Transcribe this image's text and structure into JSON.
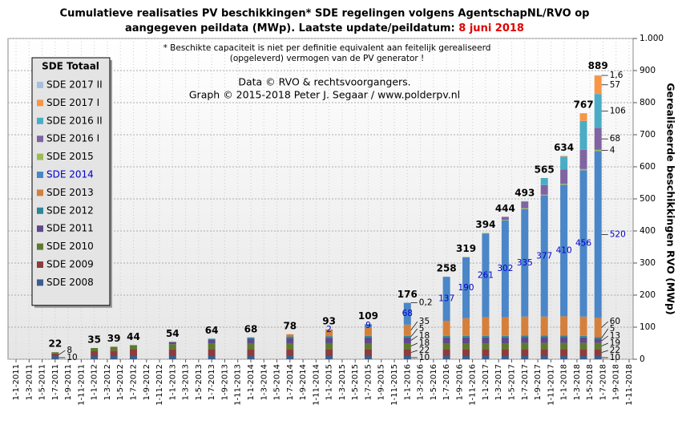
{
  "chart_data": {
    "type": "stacked_bar",
    "title_lines": [
      "Cumulatieve realisaties PV beschikkingen*  SDE regelingen volgens AgentschapNL/RVO  op",
      "aangegeven peildata (MWp). Laatste update/peildatum: "
    ],
    "title_date": "8 juni 2018",
    "notes": [
      "* Beschikte capaciteit is niet per definitie equivalent aan feitelijk gerealiseerd",
      "(opgeleverd) vermogen van de PV generator !"
    ],
    "credits": [
      "Data © RVO & rechtsvoorgangers.",
      "Graph  © 2015-2018  Peter J. Segaar / www.polderpv.nl"
    ],
    "y_label": "Gerealiseerde beschikkingen  RVO (MWp)",
    "legend_title": "SDE Totaal",
    "x": [
      "1-7-2011",
      "1-1-2012",
      "1-4-2012",
      "1-7-2012",
      "1-1-2013",
      "1-7-2013",
      "1-1-2014",
      "1-7-2014",
      "1-1-2015",
      "1-7-2015",
      "1-1-2016",
      "1-7-2016",
      "1-10-2016",
      "1-1-2017",
      "1-4-2017",
      "1-7-2017",
      "1-10-2017",
      "1-1-2018",
      "1-4-2018",
      "8-6-2018"
    ],
    "totals": [
      22,
      35,
      39,
      44,
      54,
      64,
      68,
      78,
      93,
      109,
      176,
      258,
      319,
      394,
      444,
      493,
      565,
      634,
      767,
      889
    ],
    "series": [
      {
        "name": "SDE 2008",
        "color": "#3b5e8c",
        "values": [
          10,
          10,
          10,
          10,
          10,
          10,
          10,
          10,
          10,
          10,
          10,
          10,
          10,
          10,
          10,
          10,
          10,
          10,
          10,
          10
        ],
        "value_labels": [
          "10",
          null,
          null,
          null,
          null,
          null,
          null,
          null,
          null,
          null,
          "10",
          null,
          null,
          null,
          null,
          null,
          null,
          null,
          null,
          "10"
        ]
      },
      {
        "name": "SDE 2009",
        "color": "#8e3b3b",
        "values": [
          8,
          15,
          17,
          20,
          21,
          22,
          22,
          22,
          22,
          22,
          22,
          22,
          22,
          22,
          22,
          22,
          22,
          22,
          22,
          22
        ],
        "value_labels": [
          "8",
          null,
          null,
          null,
          null,
          null,
          null,
          null,
          null,
          null,
          "22",
          null,
          null,
          null,
          null,
          null,
          null,
          null,
          null,
          "22"
        ]
      },
      {
        "name": "SDE 2010",
        "color": "#5d7a2f",
        "values": [
          4,
          10,
          12,
          14,
          16,
          17,
          17,
          18,
          18,
          18,
          18,
          18,
          18,
          18,
          18,
          19,
          19,
          19,
          19,
          19
        ],
        "value_labels": [
          null,
          null,
          null,
          null,
          null,
          null,
          null,
          null,
          null,
          null,
          "18",
          null,
          null,
          null,
          null,
          null,
          null,
          null,
          null,
          "19"
        ]
      },
      {
        "name": "SDE 2011",
        "color": "#5e4a8a",
        "values": [
          0,
          0,
          0,
          0,
          7,
          13,
          15,
          16,
          17,
          18,
          18,
          18,
          18,
          18,
          18,
          18,
          18,
          18,
          17,
          13
        ],
        "value_labels": [
          null,
          null,
          null,
          null,
          null,
          null,
          null,
          null,
          null,
          null,
          "18",
          null,
          null,
          null,
          null,
          null,
          null,
          null,
          null,
          "13"
        ]
      },
      {
        "name": "SDE 2012",
        "color": "#2e8697",
        "values": [
          0,
          0,
          0,
          0,
          0,
          2,
          4,
          5,
          5,
          5,
          5,
          5,
          5,
          5,
          5,
          5,
          5,
          5,
          5,
          5
        ],
        "value_labels": [
          null,
          null,
          null,
          null,
          null,
          null,
          null,
          null,
          null,
          null,
          "5",
          null,
          null,
          null,
          null,
          null,
          null,
          null,
          null,
          "5"
        ]
      },
      {
        "name": "SDE 2013",
        "color": "#d4803c",
        "values": [
          0,
          0,
          0,
          0,
          0,
          0,
          0,
          7,
          19,
          27,
          35,
          47,
          55,
          58,
          58,
          59,
          59,
          60,
          60,
          60
        ],
        "value_labels": [
          null,
          null,
          null,
          null,
          null,
          null,
          null,
          null,
          null,
          null,
          "35",
          null,
          null,
          null,
          null,
          null,
          null,
          null,
          null,
          "60"
        ]
      },
      {
        "name": "SDE 2014",
        "color": "#4a86c8",
        "values": [
          0,
          0,
          0,
          0,
          0,
          0,
          0,
          0,
          2,
          9,
          68,
          137,
          190,
          261,
          302,
          335,
          377,
          410,
          456,
          520
        ],
        "value_labels": [
          null,
          null,
          null,
          null,
          null,
          null,
          null,
          null,
          "2",
          "9",
          "68",
          "137",
          "190",
          "261",
          "302",
          "335",
          "377",
          "410",
          "456",
          "520"
        ]
      },
      {
        "name": "SDE 2015",
        "color": "#9bbb59",
        "values": [
          0,
          0,
          0,
          0,
          0,
          0,
          0,
          0,
          0,
          0,
          0.2,
          0.5,
          1,
          2,
          2,
          3,
          3,
          3,
          4,
          4
        ],
        "value_labels": [
          null,
          null,
          null,
          null,
          null,
          null,
          null,
          null,
          null,
          null,
          "0,2",
          null,
          null,
          null,
          null,
          null,
          null,
          null,
          null,
          "4"
        ]
      },
      {
        "name": "SDE 2016 I",
        "color": "#8064a2",
        "values": [
          0,
          0,
          0,
          0,
          0,
          0,
          0,
          0,
          0,
          0,
          0,
          0,
          0,
          0,
          9,
          20,
          30,
          45,
          60,
          68
        ],
        "value_labels": [
          null,
          null,
          null,
          null,
          null,
          null,
          null,
          null,
          null,
          null,
          null,
          null,
          null,
          null,
          null,
          null,
          null,
          null,
          null,
          "68"
        ]
      },
      {
        "name": "SDE 2016 II",
        "color": "#4bacc6",
        "values": [
          0,
          0,
          0,
          0,
          0,
          0,
          0,
          0,
          0,
          0,
          0,
          0,
          0,
          0,
          0,
          2,
          22,
          40,
          90,
          106
        ],
        "value_labels": [
          null,
          null,
          null,
          null,
          null,
          null,
          null,
          null,
          null,
          null,
          null,
          null,
          null,
          null,
          null,
          null,
          null,
          null,
          null,
          "106"
        ]
      },
      {
        "name": "SDE 2017 I",
        "color": "#f79646",
        "values": [
          0,
          0,
          0,
          0,
          0,
          0,
          0,
          0,
          0,
          0,
          0,
          0,
          0,
          0,
          0,
          0,
          0,
          2,
          24,
          57
        ],
        "value_labels": [
          null,
          null,
          null,
          null,
          null,
          null,
          null,
          null,
          null,
          null,
          null,
          null,
          null,
          null,
          null,
          null,
          null,
          null,
          null,
          "57"
        ]
      },
      {
        "name": "SDE 2017 II",
        "color": "#a7bfdc",
        "values": [
          0,
          0,
          0,
          0,
          0,
          0,
          0,
          0,
          0,
          0,
          0,
          0,
          0,
          0,
          0,
          0,
          0,
          0,
          0,
          1.6
        ],
        "value_labels": [
          null,
          null,
          null,
          null,
          null,
          null,
          null,
          null,
          null,
          null,
          null,
          null,
          null,
          null,
          null,
          null,
          null,
          null,
          null,
          "1,6"
        ]
      }
    ],
    "xlim": [
      "1-1-2011",
      "1-11-2018"
    ],
    "xticks": [
      "1-1-2011",
      "1-3-2011",
      "1-5-2011",
      "1-7-2011",
      "1-9-2011",
      "1-11-2011",
      "1-1-2012",
      "1-3-2012",
      "1-5-2012",
      "1-7-2012",
      "1-9-2012",
      "1-11-2012",
      "1-1-2013",
      "1-3-2013",
      "1-5-2013",
      "1-7-2013",
      "1-9-2013",
      "1-11-2013",
      "1-1-2014",
      "1-3-2014",
      "1-5-2014",
      "1-7-2014",
      "1-9-2014",
      "1-11-2014",
      "1-1-2015",
      "1-3-2015",
      "1-5-2015",
      "1-7-2015",
      "1-9-2015",
      "1-11-2015",
      "1-1-2016",
      "1-3-2016",
      "1-5-2016",
      "1-7-2016",
      "1-9-2016",
      "1-11-2016",
      "1-1-2017",
      "1-3-2017",
      "1-5-2017",
      "1-7-2017",
      "1-9-2017",
      "1-11-2017",
      "1-1-2018",
      "1-3-2018",
      "1-5-2018",
      "1-7-2018",
      "1-9-2018",
      "1-11-2018"
    ],
    "ylim": [
      0,
      1000
    ],
    "yticks": [
      0,
      100,
      200,
      300,
      400,
      500,
      600,
      700,
      800,
      900,
      {
        "value": 1000,
        "label": "1.000"
      }
    ],
    "grid": true,
    "legend": "upper left"
  }
}
